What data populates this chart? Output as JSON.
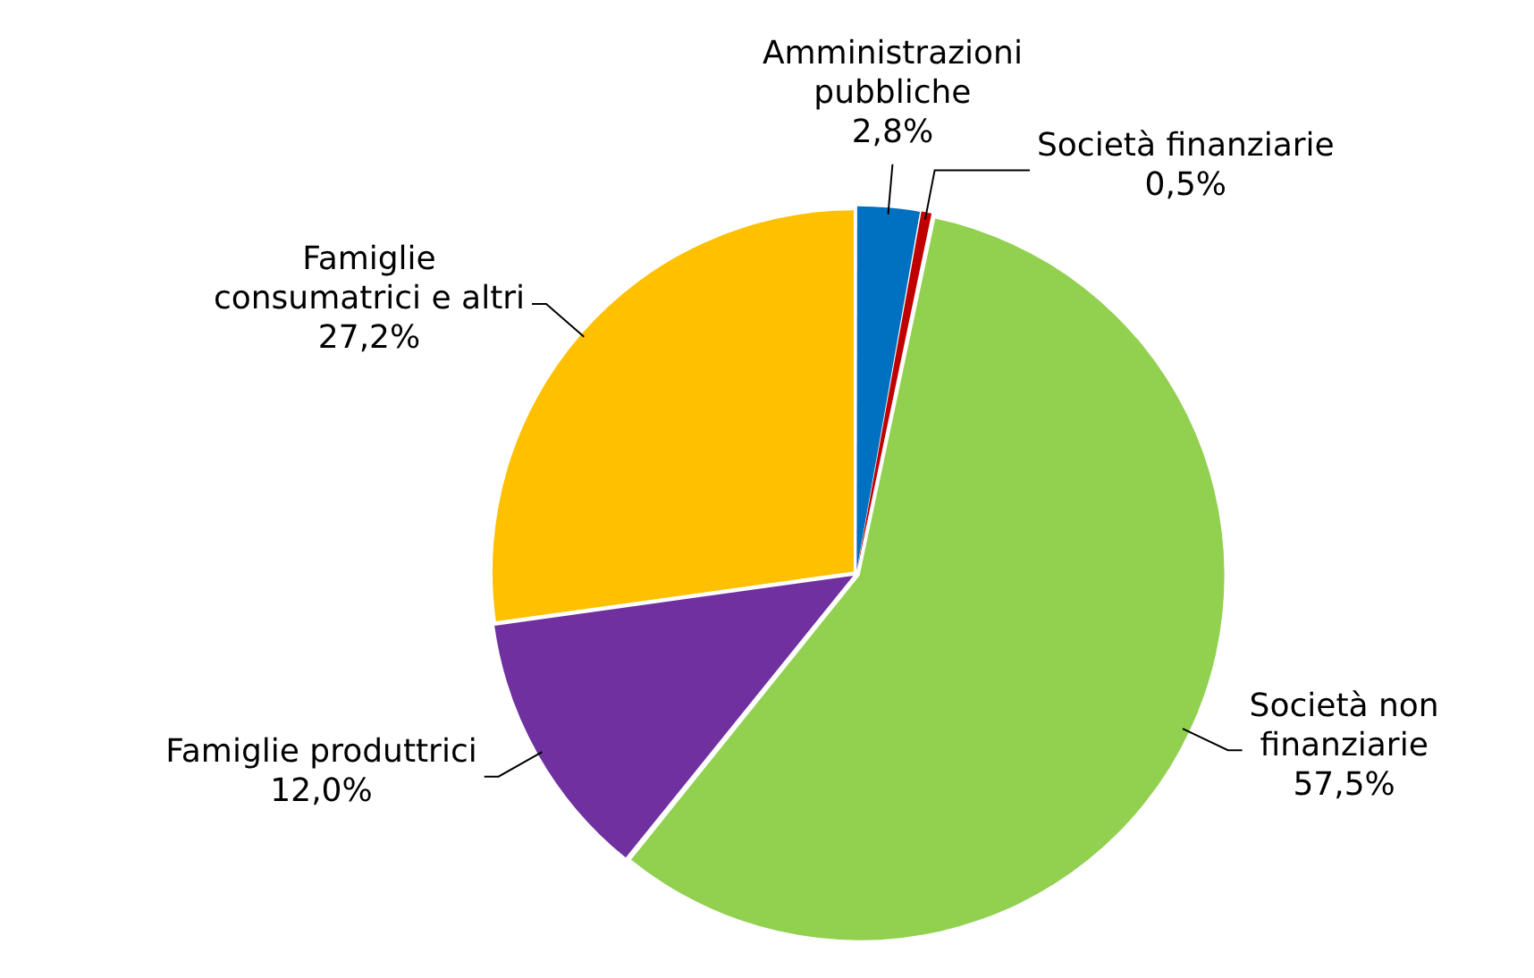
{
  "chart_data": {
    "type": "pie",
    "categories": [
      "Amministrazioni pubbliche",
      "Società finanziarie",
      "Società non finanziarie",
      "Famiglie produttrici",
      "Famiglie consumatrici e altri"
    ],
    "values": [
      2.8,
      0.5,
      57.5,
      12.0,
      27.2
    ],
    "colors": [
      "#0070c0",
      "#c00000",
      "#92d050",
      "#7030a0",
      "#ffc000"
    ],
    "value_labels": [
      "2,8%",
      "0,5%",
      "57,5%",
      "12,0%",
      "27,2%"
    ],
    "legend": false
  }
}
